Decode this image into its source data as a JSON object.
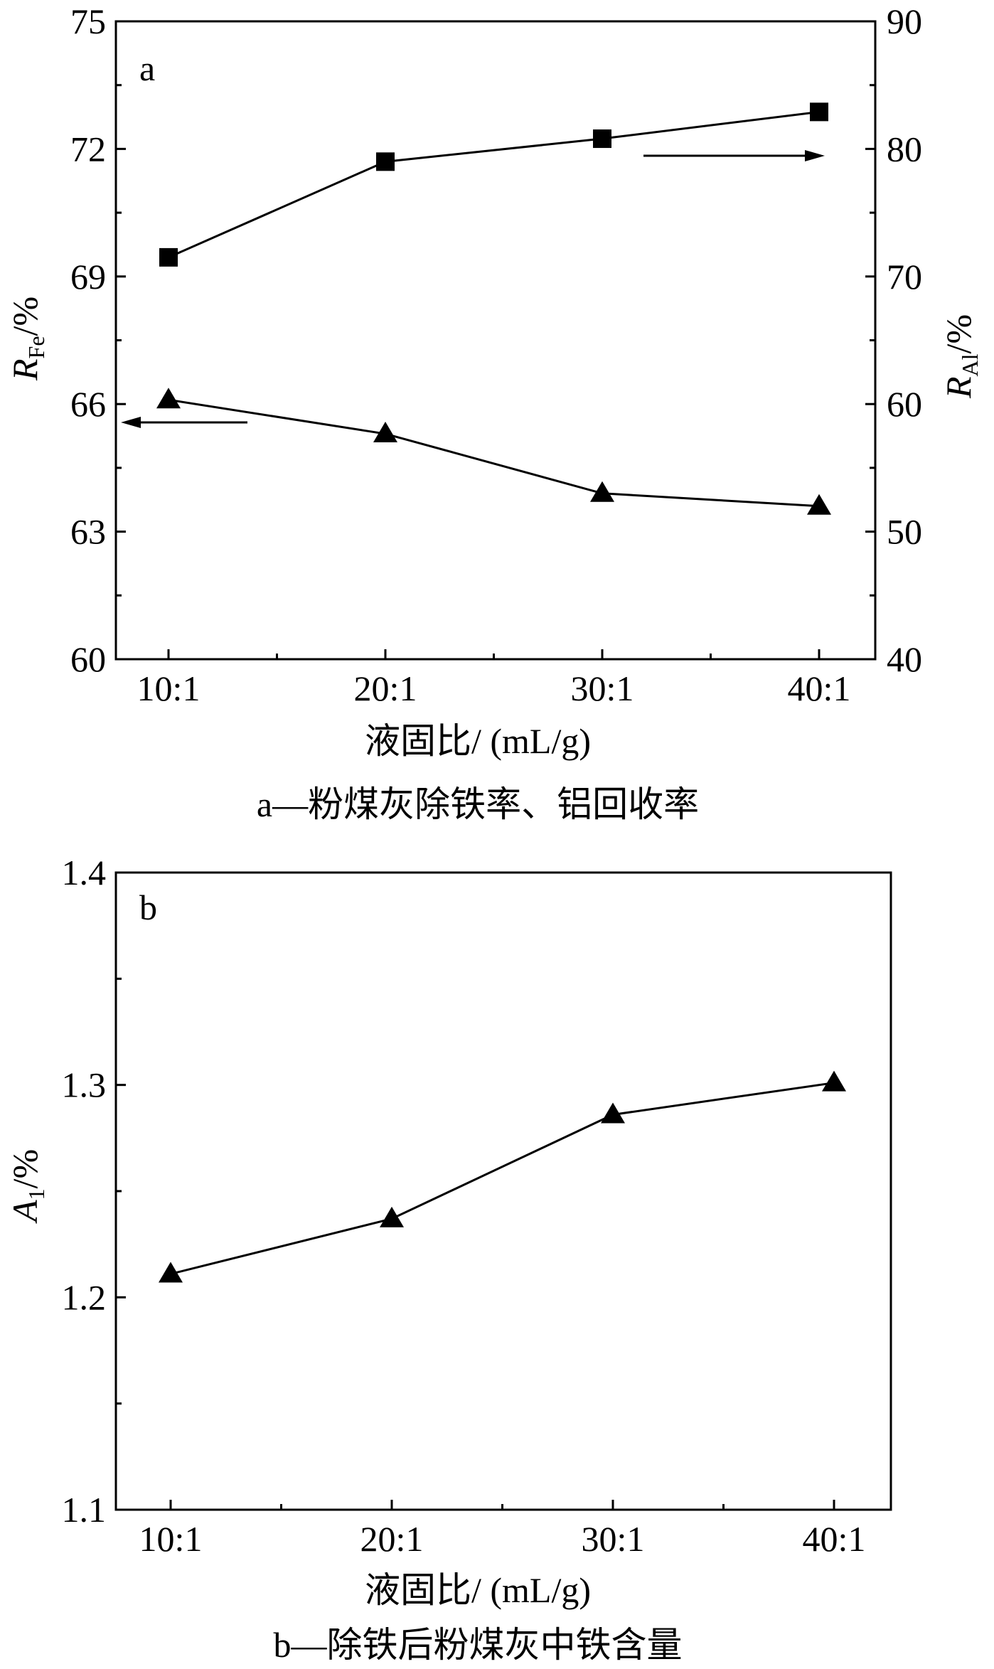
{
  "chart_data": [
    {
      "type": "line",
      "panel_label": "a",
      "categories": [
        "10:1",
        "20:1",
        "30:1",
        "40:1"
      ],
      "xlabel": "液固比/ (mL/g)",
      "ylabel_left": {
        "main": "R",
        "sub": "Fe",
        "tail": "/%"
      },
      "ylabel_right": {
        "main": "R",
        "sub": "Al",
        "tail": "/%"
      },
      "ylim_left": [
        60,
        75
      ],
      "yticks_left": [
        "60",
        "63",
        "66",
        "69",
        "72",
        "75"
      ],
      "ylim_right": [
        40,
        90
      ],
      "yticks_right": [
        "40",
        "50",
        "60",
        "70",
        "80",
        "90"
      ],
      "series": [
        {
          "axis": "left",
          "marker": "triangle",
          "values": [
            66.1,
            65.3,
            63.9,
            63.6
          ]
        },
        {
          "axis": "right",
          "marker": "square",
          "values": [
            71.5,
            79.0,
            80.8,
            82.9
          ]
        }
      ],
      "caption": "a—粉煤灰除铁率、铝回收率",
      "grid": false
    },
    {
      "type": "line",
      "panel_label": "b",
      "categories": [
        "10:1",
        "20:1",
        "30:1",
        "40:1"
      ],
      "xlabel": "液固比/ (mL/g)",
      "ylabel": {
        "main": "A",
        "sub": "1",
        "tail": "/%"
      },
      "ylim": [
        1.1,
        1.4
      ],
      "yticks": [
        "1.1",
        "1.2",
        "1.3",
        "1.4"
      ],
      "series": [
        {
          "marker": "triangle",
          "values": [
            1.211,
            1.237,
            1.286,
            1.301
          ]
        }
      ],
      "caption": "b—除铁后粉煤灰中铁含量",
      "grid": false
    }
  ]
}
